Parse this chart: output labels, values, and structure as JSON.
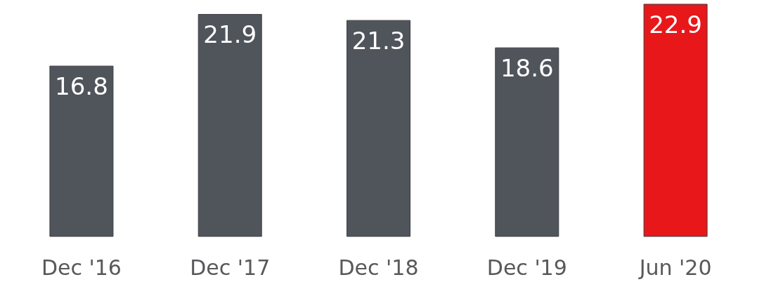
{
  "chart_data": {
    "type": "bar",
    "categories": [
      "Dec '16",
      "Dec '17",
      "Dec '18",
      "Dec '19",
      "Jun '20"
    ],
    "values": [
      16.8,
      21.9,
      21.3,
      18.6,
      22.9
    ],
    "colors": [
      "#50545b",
      "#50545b",
      "#50545b",
      "#50545b",
      "#e8171a"
    ],
    "data_labels": true
  }
}
